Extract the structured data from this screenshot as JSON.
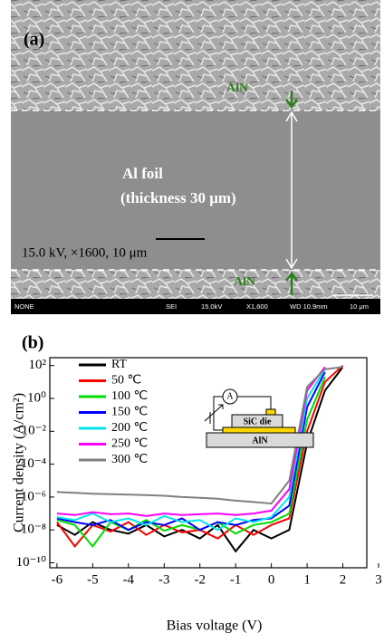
{
  "panel_a": {
    "label": "(a)",
    "aln_top": "AlN",
    "aln_bottom": "AlN",
    "foil": "Al foil",
    "thickness": "(thickness 30 μm)",
    "conditions": "15.0 kV, ×1600, 10 μm",
    "info_bar": [
      "NONE",
      "SEI",
      "15.0kV",
      "X1,600",
      "WD 10.9mm",
      "10 μm"
    ]
  },
  "panel_b": {
    "label": "(b)",
    "inset": {
      "ammeter": "A",
      "die": "SiC die",
      "substrate": "AlN"
    }
  },
  "chart_data": {
    "type": "line",
    "x_label": "Bias voltage (V)",
    "y_label": "Current density (A/cm²)",
    "x": [
      -6,
      -5.5,
      -5,
      -4.5,
      -4,
      -3.5,
      -3,
      -2.5,
      -2,
      -1.5,
      -1,
      -0.5,
      0,
      0.5,
      1,
      1.5,
      2,
      2.5
    ],
    "series": [
      {
        "name": "RT",
        "color": "#000000",
        "values": [
          2e-08,
          5e-09,
          3e-08,
          1e-08,
          6e-09,
          2e-08,
          4e-09,
          1e-08,
          3e-09,
          2e-08,
          5e-10,
          1e-08,
          3e-09,
          1e-08,
          0.002,
          3,
          80,
          null
        ]
      },
      {
        "name": "50 ℃",
        "color": "#ff0000",
        "values": [
          3e-08,
          1e-09,
          2e-08,
          8e-09,
          3e-08,
          5e-09,
          2e-08,
          7e-09,
          1e-08,
          3e-09,
          2e-08,
          5e-09,
          2e-08,
          5e-08,
          0.01,
          10,
          100,
          null
        ]
      },
      {
        "name": "100 ℃",
        "color": "#00dd00",
        "values": [
          4e-08,
          2e-08,
          1e-09,
          3e-08,
          1e-08,
          4e-08,
          9e-09,
          2e-08,
          1e-08,
          3e-08,
          6e-09,
          2e-08,
          3e-08,
          1e-07,
          0.05,
          20,
          null,
          null
        ]
      },
      {
        "name": "150 ℃",
        "color": "#0000ff",
        "values": [
          5e-08,
          3e-08,
          2e-08,
          4e-08,
          1e-08,
          3e-08,
          2e-08,
          5e-08,
          1e-08,
          3e-08,
          2e-08,
          4e-08,
          5e-08,
          3e-07,
          0.3,
          40,
          null,
          null
        ]
      },
      {
        "name": "200 ℃",
        "color": "#00e5ee",
        "values": [
          6e-08,
          4e-08,
          1e-07,
          3e-08,
          5e-08,
          2e-08,
          7e-08,
          3e-08,
          4e-08,
          1e-08,
          5e-08,
          3e-08,
          6e-08,
          1e-06,
          1,
          60,
          null,
          null
        ]
      },
      {
        "name": "250 ℃",
        "color": "#ff00ff",
        "values": [
          1e-07,
          8e-08,
          1.2e-07,
          9e-08,
          1e-07,
          7e-08,
          1e-07,
          8e-08,
          9e-08,
          1e-07,
          8e-08,
          1e-07,
          1.5e-07,
          3e-06,
          3,
          80,
          null,
          null
        ]
      },
      {
        "name": "300 ℃",
        "color": "#808080",
        "values": [
          2e-06,
          1.8e-06,
          1.6e-06,
          1.5e-06,
          1.4e-06,
          1.3e-06,
          1.2e-06,
          1e-06,
          9e-07,
          8e-07,
          6e-07,
          5e-07,
          4e-07,
          1e-05,
          5,
          60,
          80,
          null
        ]
      }
    ],
    "xlim": [
      -6.2,
      3
    ],
    "xticks": [
      -6,
      -5,
      -4,
      -3,
      -2,
      -1,
      0,
      1,
      2,
      3
    ],
    "ylim": [
      5e-11,
      300
    ],
    "log_y": true,
    "yticks": [
      {
        "value": 100,
        "label": "10²"
      },
      {
        "value": 1,
        "label": "10⁰"
      },
      {
        "value": 0.01,
        "label": "10⁻²"
      },
      {
        "value": 0.0001,
        "label": "10⁻⁴"
      },
      {
        "value": 1e-06,
        "label": "10⁻⁶"
      },
      {
        "value": 1e-08,
        "label": "10⁻⁸"
      },
      {
        "value": 1e-10,
        "label": "10⁻¹⁰"
      }
    ],
    "legend": "upper left"
  }
}
